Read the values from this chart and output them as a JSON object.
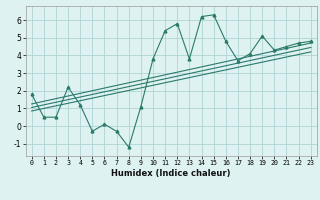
{
  "xlabel": "Humidex (Indice chaleur)",
  "bg_color": "#dff2f2",
  "grid_color": "#aed4d4",
  "line_color": "#2a7a6a",
  "xlim": [
    -0.5,
    23.5
  ],
  "ylim": [
    -1.7,
    6.8
  ],
  "yticks": [
    -1,
    0,
    1,
    2,
    3,
    4,
    5,
    6
  ],
  "xticks": [
    0,
    1,
    2,
    3,
    4,
    5,
    6,
    7,
    8,
    9,
    10,
    11,
    12,
    13,
    14,
    15,
    16,
    17,
    18,
    19,
    20,
    21,
    22,
    23
  ],
  "main_x": [
    0,
    1,
    2,
    3,
    4,
    5,
    6,
    7,
    8,
    9,
    10,
    11,
    12,
    13,
    14,
    15,
    16,
    17,
    18,
    19,
    20,
    21,
    22,
    23
  ],
  "main_y": [
    1.8,
    0.5,
    0.5,
    2.2,
    1.2,
    -0.3,
    0.1,
    -0.3,
    -1.2,
    1.1,
    3.8,
    5.4,
    5.8,
    3.8,
    6.2,
    6.3,
    4.8,
    3.7,
    4.1,
    5.1,
    4.3,
    4.5,
    4.7,
    4.8
  ],
  "line1_x": [
    0,
    23
  ],
  "line1_y": [
    1.05,
    4.45
  ],
  "line2_x": [
    0,
    23
  ],
  "line2_y": [
    1.25,
    4.7
  ],
  "line3_x": [
    0,
    23
  ],
  "line3_y": [
    0.85,
    4.2
  ]
}
